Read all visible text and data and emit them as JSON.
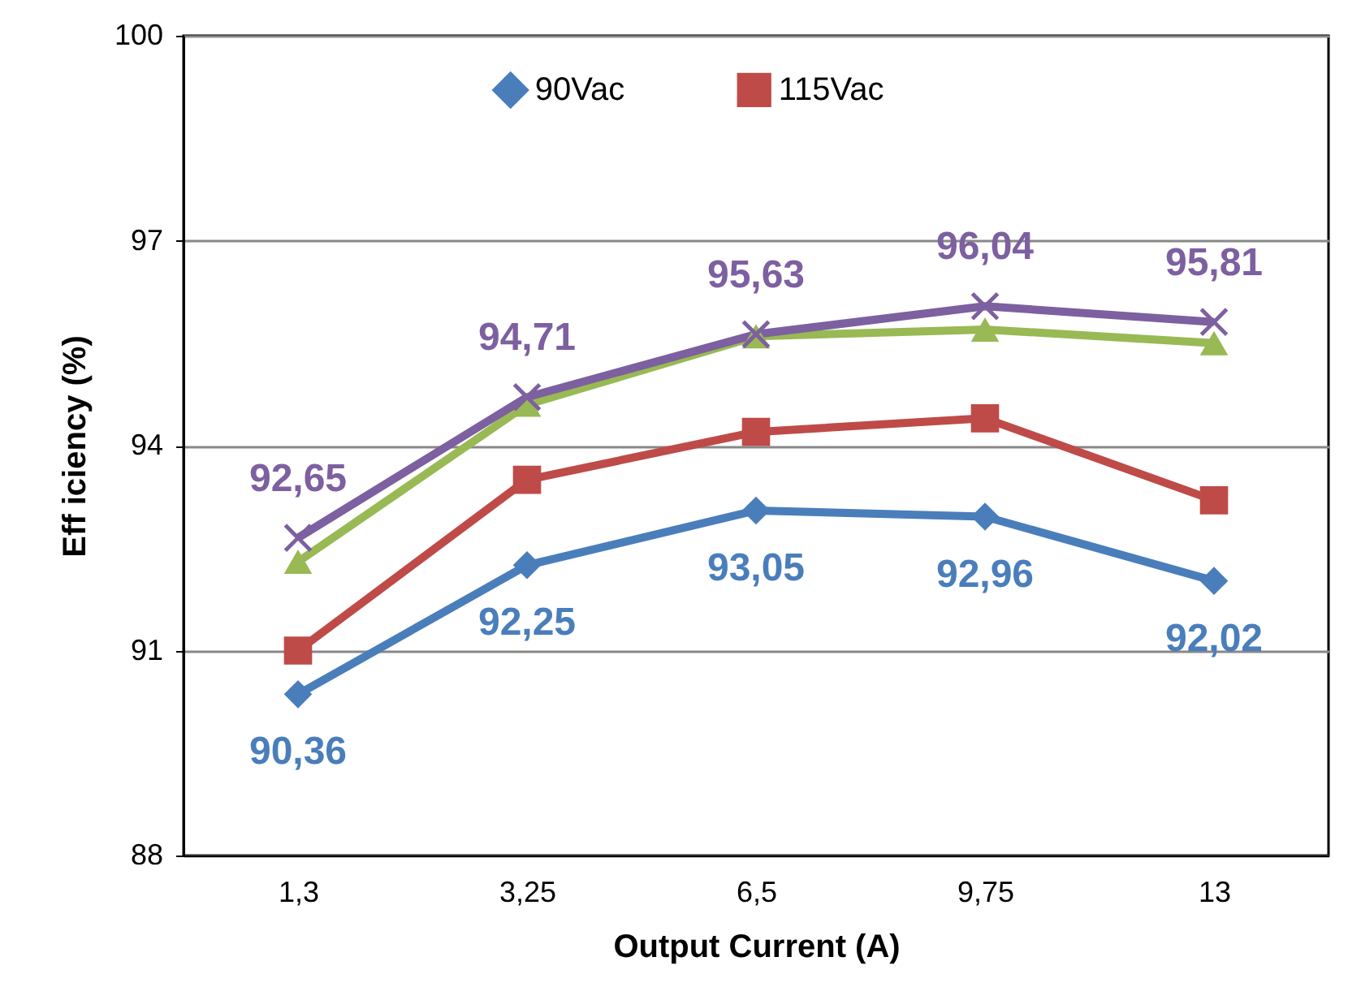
{
  "chart_data": {
    "type": "line",
    "xlabel": "Output Current (A)",
    "ylabel": "Eff iciency (%)",
    "categories": [
      "1,3",
      "3,25",
      "6,5",
      "9,75",
      "13"
    ],
    "series": [
      {
        "name": "90Vac",
        "color": "#4a7ebb",
        "marker": "diamond",
        "values": [
          90.36,
          92.25,
          93.05,
          92.96,
          92.02
        ],
        "value_labels": [
          "90,36",
          "92,25",
          "93,05",
          "92,96",
          "92,02"
        ]
      },
      {
        "name": "115Vac",
        "color": "#be4b48",
        "marker": "square",
        "values": [
          91.0,
          93.5,
          94.2,
          94.4,
          93.2
        ]
      },
      {
        "color": "#98b954",
        "marker": "triangle",
        "values": [
          92.3,
          94.6,
          95.6,
          95.7,
          95.5
        ]
      },
      {
        "color": "#7d60a0",
        "marker": "cross",
        "values": [
          92.65,
          94.71,
          95.63,
          96.04,
          95.81
        ],
        "value_labels": [
          "92,65",
          "94,71",
          "95,63",
          "96,04",
          "95,81"
        ]
      }
    ],
    "ylim": [
      88,
      100
    ],
    "yticks": [
      88,
      91,
      94,
      97,
      100
    ],
    "grid": "y",
    "legend": "top"
  }
}
